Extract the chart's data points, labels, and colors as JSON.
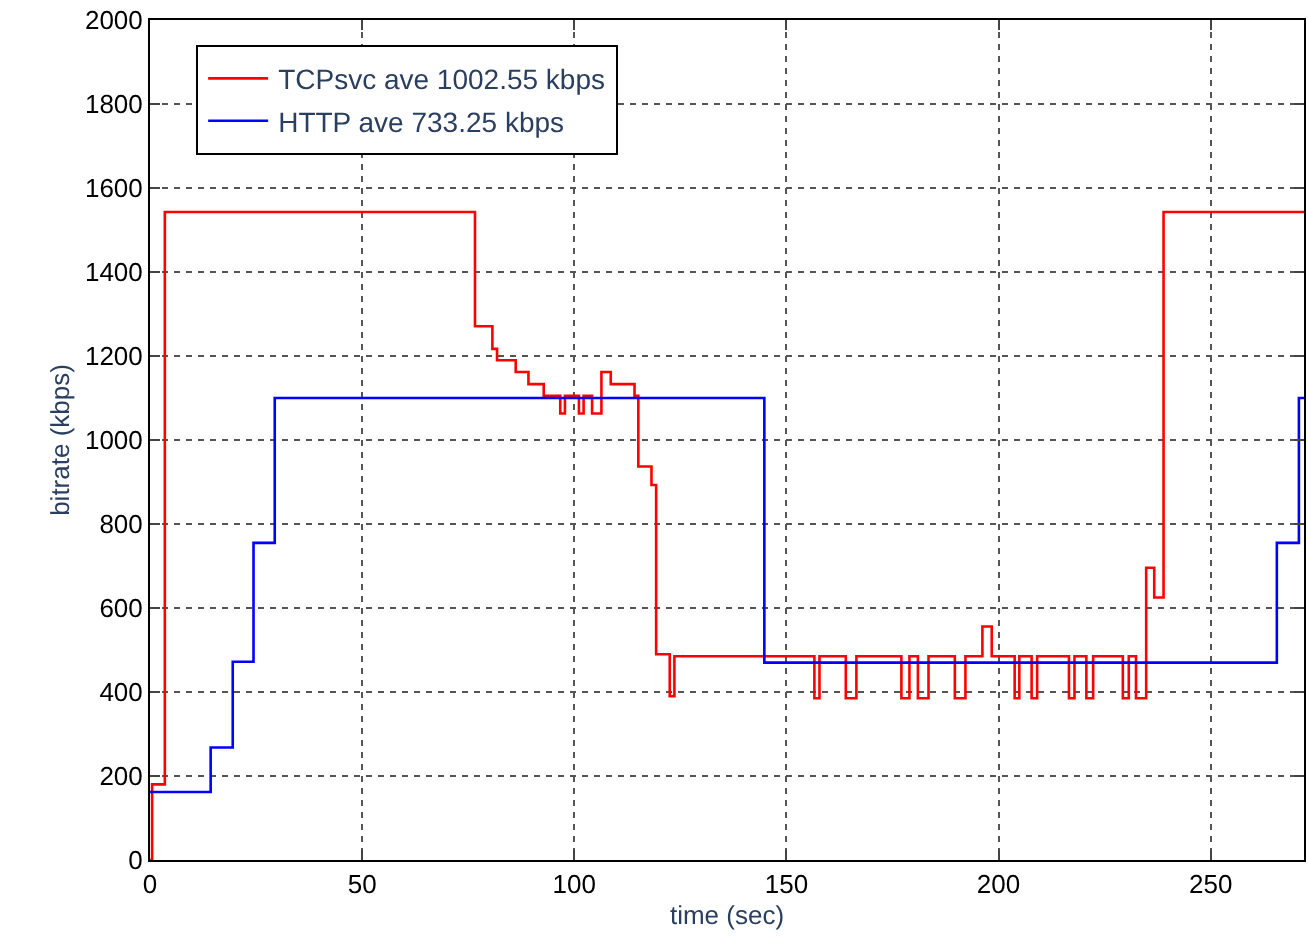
{
  "chart_data": {
    "type": "step",
    "xlabel": "time (sec)",
    "ylabel": "bitrate (kbps)",
    "xlim": [
      0,
      272
    ],
    "ylim": [
      0,
      2000
    ],
    "xticks": [
      0,
      50,
      100,
      150,
      200,
      250
    ],
    "yticks": [
      0,
      200,
      400,
      600,
      800,
      1000,
      1200,
      1400,
      1600,
      1800,
      2000
    ],
    "grid": true,
    "legend": "top left",
    "line_style": "solid",
    "marker": "none",
    "series": [
      {
        "name": "TCPsvc ave 1002.55 kbps",
        "color": "#ff0000",
        "x": [
          0,
          0.5,
          3.5,
          76.6,
          80.7,
          81.8,
          86.2,
          89.2,
          92.8,
          96.7,
          97.8,
          101.1,
          102.2,
          104.2,
          106.4,
          108.6,
          114.2,
          115.1,
          118.2,
          119.3,
          122.5,
          123.6,
          156.6,
          157.8,
          164.0,
          166.5,
          177.1,
          179.0,
          181.0,
          183.5,
          189.7,
          192.2,
          196.2,
          198.4,
          203.8,
          204.9,
          207.8,
          209.1,
          216.6,
          217.9,
          220.7,
          222.3,
          229.3,
          230.7,
          232.4,
          234.8,
          236.7,
          238.9,
          272
        ],
        "values": [
          0,
          180,
          1543,
          1271,
          1217,
          1190,
          1162,
          1133,
          1105,
          1063,
          1105,
          1063,
          1105,
          1063,
          1162,
          1133,
          1105,
          937,
          893,
          490,
          390,
          485,
          385,
          485,
          385,
          485,
          385,
          485,
          385,
          485,
          385,
          485,
          556,
          485,
          385,
          485,
          385,
          485,
          385,
          485,
          385,
          485,
          385,
          485,
          385,
          696,
          625,
          1543,
          1543
        ]
      },
      {
        "name": "HTTP ave 733.25 kbps",
        "color": "#0000ff",
        "x": [
          0,
          14.3,
          19.5,
          24.4,
          29.4,
          144.8,
          265.6,
          270.8,
          272
        ],
        "values": [
          162,
          268,
          472,
          755,
          1100,
          470,
          755,
          1100,
          1100
        ]
      }
    ]
  }
}
